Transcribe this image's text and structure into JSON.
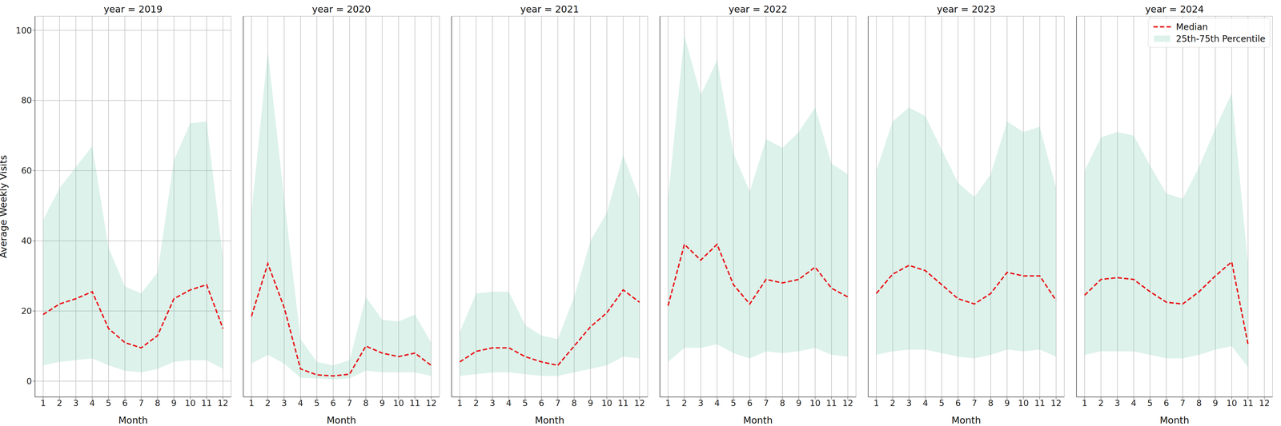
{
  "chart_data": [
    {
      "type": "line",
      "title": "year = 2019",
      "x_label": "Month",
      "y_label": "Average Weekly Visits",
      "x": [
        1,
        2,
        3,
        4,
        5,
        6,
        7,
        8,
        9,
        10,
        11,
        12
      ],
      "xlim": [
        0.5,
        12.5
      ],
      "xticks": [
        1,
        2,
        3,
        4,
        5,
        6,
        7,
        8,
        9,
        10,
        11,
        12
      ],
      "ylim": [
        -4.5,
        104
      ],
      "yticks": [
        0,
        20,
        40,
        60,
        80,
        100
      ],
      "grid": true,
      "series": [
        {
          "name": "Median",
          "type": "line",
          "color": "#e8191c",
          "line_style": "dashed",
          "values": [
            19,
            22,
            23.5,
            25.5,
            15,
            11,
            9.5,
            13,
            23.5,
            26,
            27.5,
            15
          ]
        },
        {
          "name": "25th-75th Percentile",
          "type": "band",
          "color": "#66c2a5",
          "values": [
            [
              4.5,
              46
            ],
            [
              5.5,
              55
            ],
            [
              6,
              61
            ],
            [
              6.5,
              67
            ],
            [
              4.5,
              38
            ],
            [
              3,
              27
            ],
            [
              2.5,
              25
            ],
            [
              3.5,
              31
            ],
            [
              5.5,
              63
            ],
            [
              6,
              73.5
            ],
            [
              6,
              74
            ],
            [
              3.5,
              35
            ]
          ]
        }
      ]
    },
    {
      "type": "line",
      "title": "year = 2020",
      "x_label": "Month",
      "x": [
        1,
        2,
        3,
        4,
        5,
        6,
        7,
        8,
        9,
        10,
        11,
        12
      ],
      "xlim": [
        0.5,
        12.5
      ],
      "xticks": [
        1,
        2,
        3,
        4,
        5,
        6,
        7,
        8,
        9,
        10,
        11,
        12
      ],
      "ylim": [
        -4.5,
        104
      ],
      "yticks": [
        0,
        20,
        40,
        60,
        80,
        100
      ],
      "grid": true,
      "tick_labels": "x",
      "series": [
        {
          "name": "Median",
          "type": "line",
          "color": "#e8191c",
          "line_style": "dashed",
          "values": [
            18.5,
            33.5,
            21,
            3.5,
            1.8,
            1.5,
            2,
            10,
            8,
            7,
            8,
            4.5
          ]
        },
        {
          "name": "25th-75th Percentile",
          "type": "band",
          "color": "#66c2a5",
          "values": [
            [
              5,
              48
            ],
            [
              7.5,
              94
            ],
            [
              5,
              52
            ],
            [
              1,
              12
            ],
            [
              0.8,
              5.5
            ],
            [
              0.5,
              4.5
            ],
            [
              0.8,
              6
            ],
            [
              3,
              24
            ],
            [
              2.5,
              17.5
            ],
            [
              2.5,
              17
            ],
            [
              2.5,
              19
            ],
            [
              1.5,
              11
            ]
          ]
        }
      ]
    },
    {
      "type": "line",
      "title": "year = 2021",
      "x_label": "Month",
      "x": [
        1,
        2,
        3,
        4,
        5,
        6,
        7,
        8,
        9,
        10,
        11,
        12
      ],
      "xlim": [
        0.5,
        12.5
      ],
      "xticks": [
        1,
        2,
        3,
        4,
        5,
        6,
        7,
        8,
        9,
        10,
        11,
        12
      ],
      "ylim": [
        -4.5,
        104
      ],
      "yticks": [
        0,
        20,
        40,
        60,
        80,
        100
      ],
      "grid": true,
      "tick_labels": "x",
      "series": [
        {
          "name": "Median",
          "type": "line",
          "color": "#e8191c",
          "line_style": "dashed",
          "values": [
            5.5,
            8.5,
            9.5,
            9.5,
            7,
            5.5,
            4.5,
            10,
            15.5,
            19.5,
            26,
            22.5
          ]
        },
        {
          "name": "25th-75th Percentile",
          "type": "band",
          "color": "#66c2a5",
          "values": [
            [
              1.5,
              14
            ],
            [
              2,
              25
            ],
            [
              2.5,
              25.5
            ],
            [
              2.5,
              25.5
            ],
            [
              2,
              16
            ],
            [
              1.5,
              13
            ],
            [
              1.5,
              12
            ],
            [
              2.5,
              24
            ],
            [
              3.5,
              40
            ],
            [
              4.5,
              48
            ],
            [
              7,
              64.5
            ],
            [
              6.5,
              52
            ]
          ]
        }
      ]
    },
    {
      "type": "line",
      "title": "year = 2022",
      "x_label": "Month",
      "x": [
        1,
        2,
        3,
        4,
        5,
        6,
        7,
        8,
        9,
        10,
        11,
        12
      ],
      "xlim": [
        0.5,
        12.5
      ],
      "xticks": [
        1,
        2,
        3,
        4,
        5,
        6,
        7,
        8,
        9,
        10,
        11,
        12
      ],
      "ylim": [
        -4.5,
        104
      ],
      "yticks": [
        0,
        20,
        40,
        60,
        80,
        100
      ],
      "grid": true,
      "tick_labels": "x",
      "series": [
        {
          "name": "Median",
          "type": "line",
          "color": "#e8191c",
          "line_style": "dashed",
          "values": [
            21.5,
            39,
            34.5,
            39,
            27.5,
            22,
            29,
            28,
            29,
            32.5,
            26.5,
            24
          ]
        },
        {
          "name": "25th-75th Percentile",
          "type": "band",
          "color": "#66c2a5",
          "values": [
            [
              5.5,
              52
            ],
            [
              9.5,
              98.5
            ],
            [
              9.5,
              81.5
            ],
            [
              10.5,
              91.5
            ],
            [
              8,
              65
            ],
            [
              6.5,
              54
            ],
            [
              8.5,
              69
            ],
            [
              8,
              66.5
            ],
            [
              8.5,
              71
            ],
            [
              9.5,
              78
            ],
            [
              7.5,
              62
            ],
            [
              7,
              59
            ]
          ]
        }
      ]
    },
    {
      "type": "line",
      "title": "year = 2023",
      "x_label": "Month",
      "x": [
        1,
        2,
        3,
        4,
        5,
        6,
        7,
        8,
        9,
        10,
        11,
        12
      ],
      "xlim": [
        0.5,
        12.5
      ],
      "xticks": [
        1,
        2,
        3,
        4,
        5,
        6,
        7,
        8,
        9,
        10,
        11,
        12
      ],
      "ylim": [
        -4.5,
        104
      ],
      "yticks": [
        0,
        20,
        40,
        60,
        80,
        100
      ],
      "grid": true,
      "tick_labels": "x",
      "series": [
        {
          "name": "Median",
          "type": "line",
          "color": "#e8191c",
          "line_style": "dashed",
          "values": [
            25,
            30.5,
            33,
            31.5,
            27.5,
            23.5,
            22,
            25,
            31,
            30,
            30,
            23
          ]
        },
        {
          "name": "25th-75th Percentile",
          "type": "band",
          "color": "#66c2a5",
          "values": [
            [
              7.5,
              60
            ],
            [
              8.5,
              74
            ],
            [
              9,
              78
            ],
            [
              9,
              75.5
            ],
            [
              8,
              66
            ],
            [
              7,
              56.5
            ],
            [
              6.5,
              52.5
            ],
            [
              7.5,
              59
            ],
            [
              9,
              74
            ],
            [
              8.5,
              71
            ],
            [
              9,
              72.5
            ],
            [
              7,
              55
            ]
          ]
        }
      ]
    },
    {
      "type": "line",
      "title": "year = 2024",
      "x_label": "Month",
      "x": [
        1,
        2,
        3,
        4,
        5,
        6,
        7,
        8,
        9,
        10,
        11,
        12
      ],
      "xlim": [
        0.5,
        12.5
      ],
      "xticks": [
        1,
        2,
        3,
        4,
        5,
        6,
        7,
        8,
        9,
        10,
        11,
        12
      ],
      "ylim": [
        -4.5,
        104
      ],
      "yticks": [
        0,
        20,
        40,
        60,
        80,
        100
      ],
      "grid": true,
      "tick_labels": "x",
      "legend": "upper right",
      "series": [
        {
          "name": "Median",
          "type": "line",
          "color": "#e8191c",
          "line_style": "dashed",
          "values": [
            24.5,
            29,
            29.5,
            29,
            25.5,
            22.5,
            22,
            25.5,
            30,
            34,
            10.5,
            null
          ]
        },
        {
          "name": "25th-75th Percentile",
          "type": "band",
          "color": "#66c2a5",
          "values": [
            [
              7.5,
              60
            ],
            [
              8.5,
              69.5
            ],
            [
              8.5,
              71
            ],
            [
              8.5,
              70
            ],
            [
              7.5,
              61.5
            ],
            [
              6.5,
              53.5
            ],
            [
              6.5,
              52
            ],
            [
              7.5,
              61
            ],
            [
              9,
              72
            ],
            [
              10,
              82
            ],
            [
              4,
              33
            ],
            null
          ]
        }
      ]
    }
  ]
}
